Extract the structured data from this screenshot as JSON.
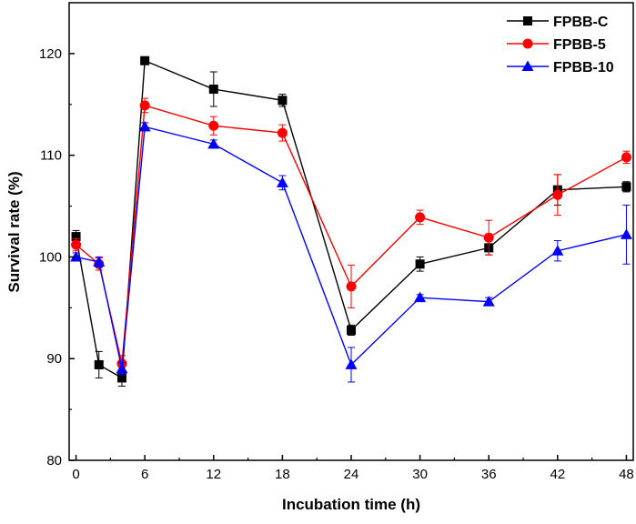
{
  "chart_data": {
    "type": "line",
    "title": "",
    "xlabel": "Incubation time (h)",
    "ylabel": "Survival rate (%)",
    "xlim": [
      -0.6,
      48.6
    ],
    "ylim": [
      80,
      125
    ],
    "xticks": [
      0,
      6,
      12,
      18,
      24,
      30,
      36,
      42,
      48
    ],
    "yticks": [
      80,
      90,
      100,
      110,
      120
    ],
    "x": [
      0,
      2,
      4,
      6,
      12,
      18,
      24,
      30,
      36,
      42,
      48
    ],
    "legend_position": "top-right",
    "series": [
      {
        "name": "FPBB-C",
        "color": "#000000",
        "marker": "square",
        "values": [
          102.0,
          89.4,
          88.1,
          119.3,
          116.5,
          115.4,
          92.8,
          99.3,
          100.9,
          106.6,
          106.9
        ],
        "errors": [
          0.6,
          1.3,
          0.8,
          0.3,
          1.7,
          0.6,
          0.5,
          0.7,
          0.7,
          1.5,
          0.5
        ]
      },
      {
        "name": "FPBB-5",
        "color": "#ff0000",
        "marker": "circle",
        "values": [
          101.2,
          99.3,
          89.5,
          114.9,
          112.9,
          112.2,
          97.1,
          103.9,
          101.9,
          106.1,
          109.8
        ],
        "errors": [
          0.6,
          0.6,
          0.8,
          0.7,
          0.9,
          0.8,
          2.1,
          0.7,
          1.7,
          2.0,
          0.6
        ]
      },
      {
        "name": "FPBB-10",
        "color": "#0000ff",
        "marker": "triangle",
        "values": [
          100.0,
          99.5,
          89.0,
          112.8,
          111.1,
          107.3,
          89.4,
          96.0,
          95.6,
          100.6,
          102.2
        ],
        "errors": [
          0.4,
          0.5,
          0.6,
          0.4,
          0.4,
          0.7,
          1.7,
          0.3,
          0.4,
          1.0,
          2.9
        ]
      }
    ]
  }
}
